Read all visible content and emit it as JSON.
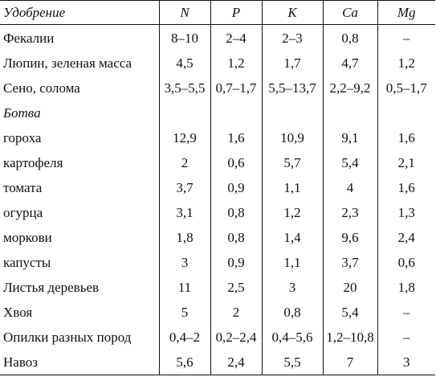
{
  "table": {
    "headers": [
      "Удобрение",
      "N",
      "P",
      "K",
      "Ca",
      "Mg"
    ],
    "rows": [
      {
        "label": "Фекалии",
        "values": [
          "8–10",
          "2–4",
          "2–3",
          "0,8",
          "–"
        ]
      },
      {
        "label": "Люпин, зеленая масса",
        "values": [
          "4,5",
          "1,2",
          "1,7",
          "4,7",
          "1,2"
        ]
      },
      {
        "label": "Сено, солома",
        "values": [
          "3,5–5,5",
          "0,7–1,7",
          "5,5–13,7",
          "2,2–9,2",
          "0,5–1,7"
        ]
      },
      {
        "label": "Ботва",
        "values": [
          "",
          "",
          "",
          "",
          ""
        ],
        "group": true
      },
      {
        "label": "гороха",
        "values": [
          "12,9",
          "1,6",
          "10,9",
          "9,1",
          "1,6"
        ]
      },
      {
        "label": "картофеля",
        "values": [
          "2",
          "0,6",
          "5,7",
          "5,4",
          "2,1"
        ]
      },
      {
        "label": "томата",
        "values": [
          "3,7",
          "0,9",
          "1,1",
          "4",
          "1,6"
        ]
      },
      {
        "label": "огурца",
        "values": [
          "3,1",
          "0,8",
          "1,2",
          "2,3",
          "1,3"
        ]
      },
      {
        "label": "моркови",
        "values": [
          "1,8",
          "0,8",
          "1,4",
          "9,6",
          "2,4"
        ]
      },
      {
        "label": "капусты",
        "values": [
          "3",
          "0,9",
          "1,1",
          "3,7",
          "0,6"
        ]
      },
      {
        "label": "Листья деревьев",
        "values": [
          "11",
          "2,5",
          "3",
          "20",
          "1,8"
        ]
      },
      {
        "label": "Хвоя",
        "values": [
          "5",
          "2",
          "0,8",
          "5,4",
          "–"
        ]
      },
      {
        "label": "Опилки разных пород",
        "values": [
          "0,4–2",
          "0,2–2,4",
          "0,4–5,6",
          "1,2–10,8",
          "–"
        ]
      },
      {
        "label": "Навоз",
        "values": [
          "5,6",
          "2,4",
          "5,5",
          "7",
          "3"
        ]
      }
    ]
  }
}
